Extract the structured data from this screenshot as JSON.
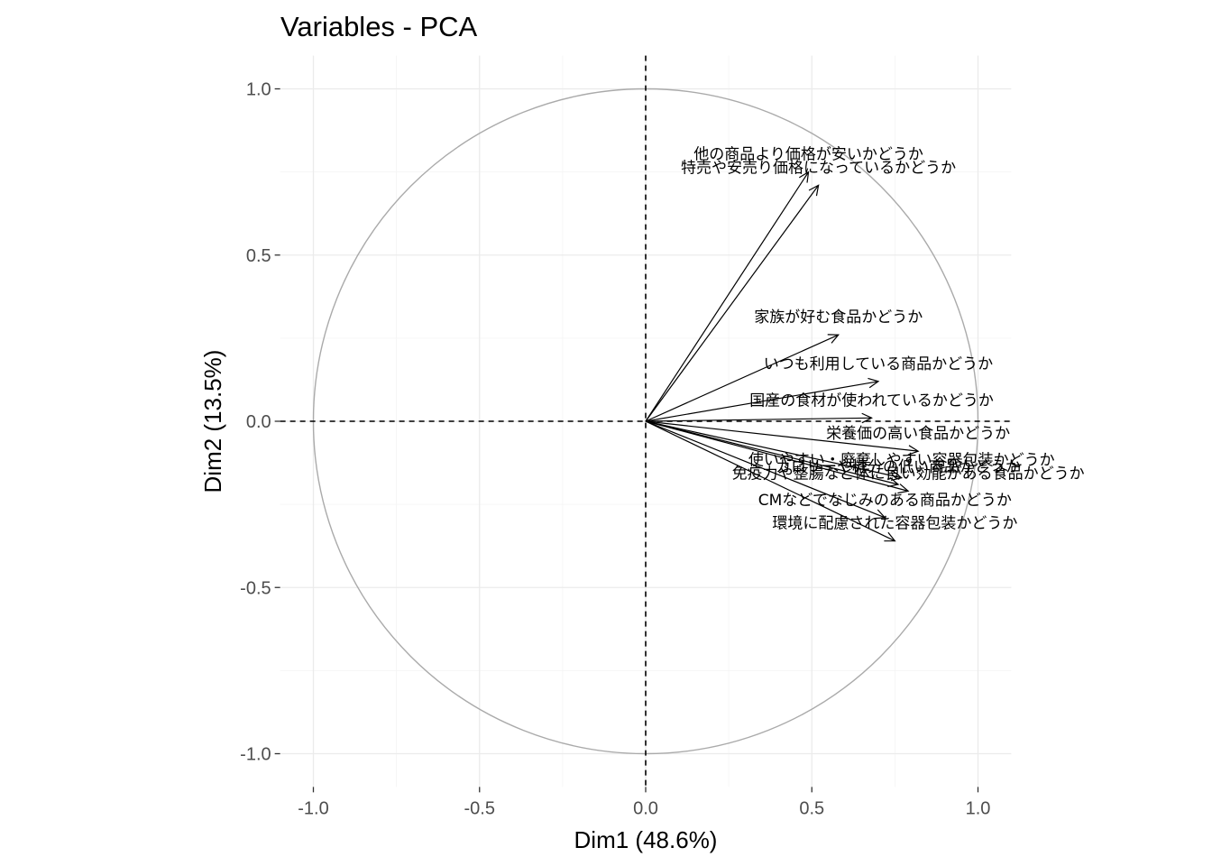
{
  "chart_data": {
    "type": "scatter",
    "subtype": "pca-variable-correlation-circle",
    "title": "Variables - PCA",
    "xlabel": "Dim1 (48.6%)",
    "ylabel": "Dim2 (13.5%)",
    "xlim": [
      -1.1,
      1.1
    ],
    "ylim": [
      -1.1,
      1.1
    ],
    "x_ticks": [
      -1.0,
      -0.5,
      0.0,
      0.5,
      1.0
    ],
    "x_tick_labels": [
      "-1.0",
      "-0.5",
      "0.0",
      "0.5",
      "1.0"
    ],
    "y_ticks": [
      -1.0,
      -0.5,
      0.0,
      0.5,
      1.0
    ],
    "y_tick_labels": [
      "-1.0",
      "-0.5",
      "0.0",
      "0.5",
      "1.0"
    ],
    "grid": true,
    "unit_circle": true,
    "reference_lines": {
      "x": 0,
      "y": 0,
      "style": "dashed"
    },
    "colors": {
      "arrow": "#000000",
      "circle": "#aaaaaa",
      "grid": "#ebebeb",
      "tick_text": "#4d4d4d"
    },
    "variables": [
      {
        "name": "他の商品より価格が安いかどうか",
        "x": 0.49,
        "y": 0.75
      },
      {
        "name": "特売や安売り価格になっているかどうか",
        "x": 0.52,
        "y": 0.71
      },
      {
        "name": "家族が好む食品かどうか",
        "x": 0.58,
        "y": 0.26
      },
      {
        "name": "いつも利用している商品かどうか",
        "x": 0.7,
        "y": 0.12
      },
      {
        "name": "国産の食材が使われているかどうか",
        "x": 0.68,
        "y": 0.01
      },
      {
        "name": "栄養価の高い食品かどうか",
        "x": 0.82,
        "y": -0.09
      },
      {
        "name": "使いやすい・廃棄しやすい容器包装かどうか",
        "x": 0.77,
        "y": -0.17
      },
      {
        "name": "カロリーや糖分の低い商品かどうか",
        "x": 0.76,
        "y": -0.19
      },
      {
        "name": "免疫力や整腸など体に良い効能がある食品かどうか",
        "x": 0.79,
        "y": -0.21
      },
      {
        "name": "CMなどでなじみのある商品かどうか",
        "x": 0.72,
        "y": -0.29
      },
      {
        "name": "環境に配慮された容器包装かどうか",
        "x": 0.75,
        "y": -0.36
      }
    ]
  }
}
